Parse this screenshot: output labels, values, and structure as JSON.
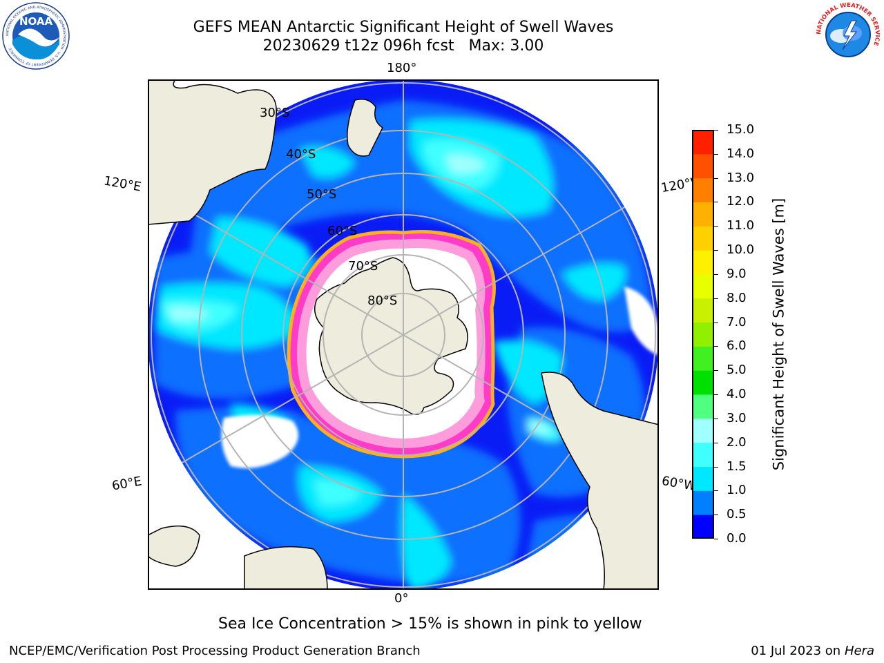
{
  "header": {
    "title_line1": "GEFS MEAN Antarctic Significant Height of Swell Waves",
    "title_line2": "20230629 t12z 096h fcst   Max: 3.00"
  },
  "logos": {
    "left": {
      "icon": "noaa-logo",
      "text": "NOAA",
      "ring_text": "NATIONAL OCEANIC AND ATMOSPHERIC ADMINISTRATION · U.S. DEPARTMENT OF COMMERCE"
    },
    "right": {
      "icon": "nws-logo",
      "ring_text": "NATIONAL WEATHER SERVICE"
    }
  },
  "map": {
    "projection": "south-polar-stereographic",
    "lon_labels": {
      "top": "180°",
      "bottom": "0°",
      "upper_left": "120°E",
      "upper_right": "120°W",
      "lower_left": "60°E",
      "lower_right": "60°W"
    },
    "lat_labels": [
      "30°S",
      "40°S",
      "50°S",
      "60°S",
      "70°S",
      "80°S"
    ],
    "colors": {
      "land": "#eeecdc",
      "ice_free_calm": "#ffffff",
      "sea_ice": "#ff69c8",
      "sea_ice_edge": "#ffb020",
      "grid": "#b4b4b4"
    }
  },
  "colorbar": {
    "label": "Significant Height of Swell Waves [m]",
    "ticks": [
      "0.0",
      "0.5",
      "1.0",
      "1.5",
      "2.0",
      "3.0",
      "4.0",
      "5.0",
      "6.0",
      "7.0",
      "8.0",
      "9.0",
      "10.0",
      "11.0",
      "12.0",
      "13.0",
      "14.0",
      "15.0"
    ],
    "colors": [
      "#0000ff",
      "#0080ff",
      "#00e8ff",
      "#40ffff",
      "#a0ffff",
      "#50ff80",
      "#00e000",
      "#40f020",
      "#90f000",
      "#c8f000",
      "#e8ff00",
      "#fff000",
      "#ffd000",
      "#ffb000",
      "#ff8000",
      "#ff5000",
      "#ff2000"
    ]
  },
  "notes": {
    "sea_ice": "Sea Ice Concentration > 15% is shown in pink to yellow"
  },
  "footer": {
    "left": "NCEP/EMC/Verification Post Processing Product Generation Branch",
    "date": "01 Jul 2023 on ",
    "machine": "Hera"
  }
}
